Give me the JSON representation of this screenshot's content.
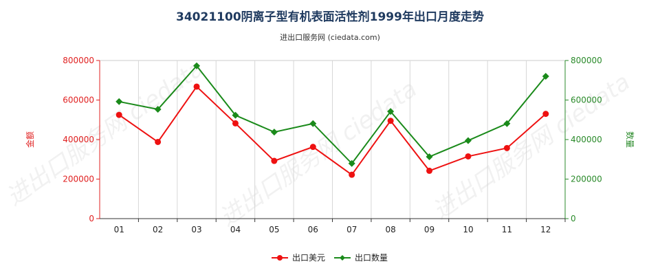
{
  "title": "34021100阴离子型有机表面活性剂1999年出口月度走势",
  "subtitle": "进出口服务网 (ciedata.com)",
  "colors": {
    "series_usd": "#ee1111",
    "series_qty": "#1a8a1a",
    "left_axis": "#e02020",
    "right_axis": "#2a8a2a"
  },
  "chart_data": {
    "type": "line",
    "categories": [
      "01",
      "02",
      "03",
      "04",
      "05",
      "06",
      "07",
      "08",
      "09",
      "10",
      "11",
      "12"
    ],
    "series": [
      {
        "name": "出口美元",
        "axis": "left",
        "values": [
          525000,
          388000,
          668000,
          482000,
          292000,
          363000,
          222000,
          495000,
          242000,
          315000,
          357000,
          530000
        ]
      },
      {
        "name": "出口数量",
        "axis": "right",
        "values": [
          592000,
          553000,
          773000,
          523000,
          438000,
          481000,
          279000,
          542000,
          313000,
          395000,
          481000,
          720000
        ]
      }
    ],
    "ylabel_left": "金额",
    "ylabel_right": "数量",
    "ylim_left": [
      0,
      800000
    ],
    "ylim_right": [
      0,
      800000
    ],
    "yticks_left": [
      "0",
      "200000",
      "400000",
      "600000",
      "800000"
    ],
    "yticks_right": [
      "0",
      "200000",
      "400000",
      "600000",
      "800000"
    ],
    "grid": "vertical",
    "legend_position": "bottom"
  }
}
